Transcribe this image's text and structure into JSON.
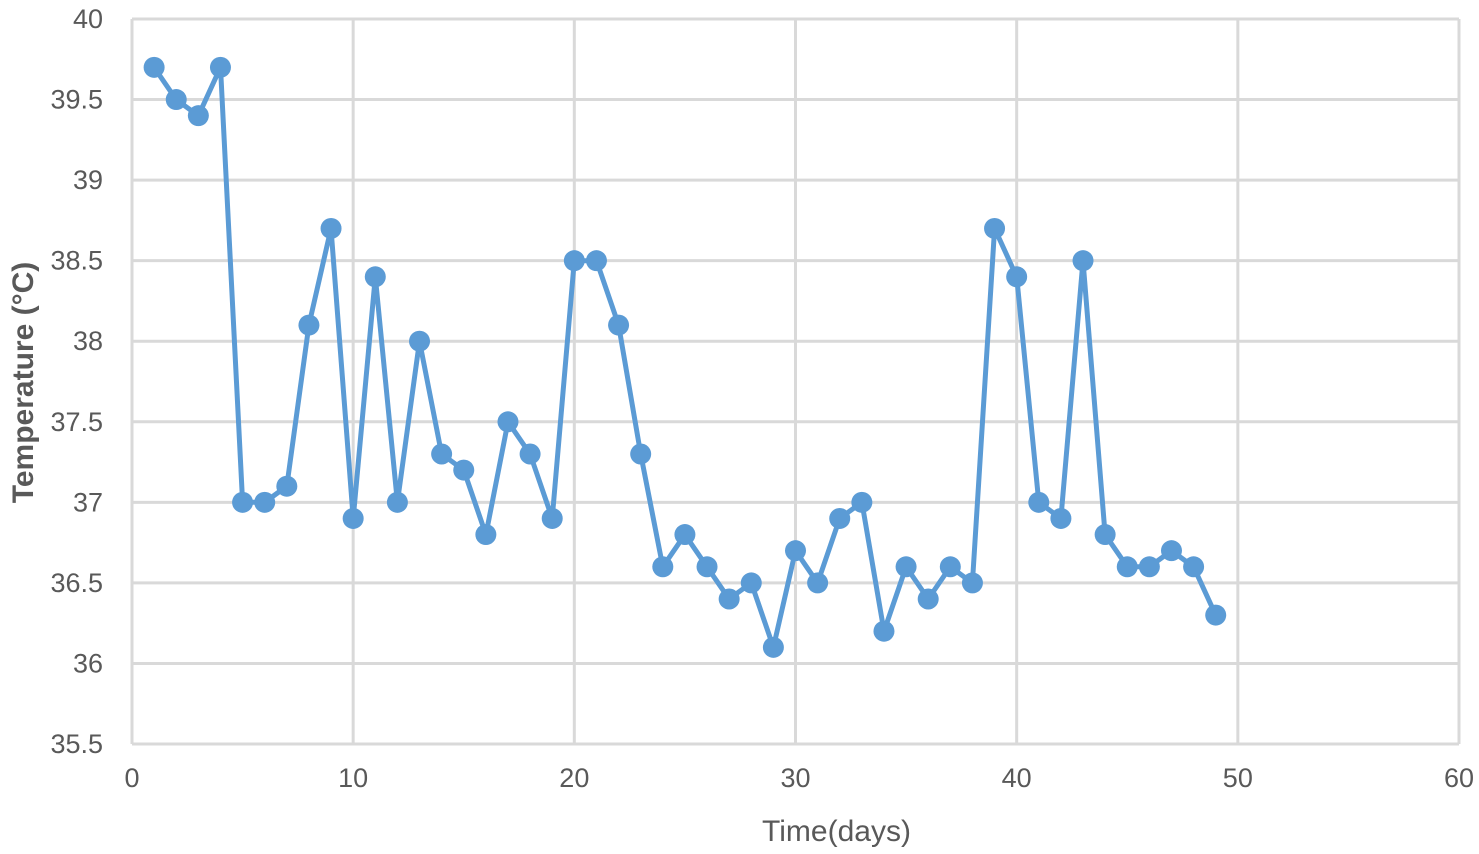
{
  "chart_data": {
    "type": "line",
    "title": "",
    "xlabel": "Time(days)",
    "ylabel": "Temperature (°C)",
    "xlim": [
      0,
      60
    ],
    "ylim": [
      35.5,
      40
    ],
    "x_ticks": [
      "0",
      "10",
      "20",
      "30",
      "40",
      "50",
      "60"
    ],
    "y_ticks": [
      "35.5",
      "36",
      "36.5",
      "37",
      "37.5",
      "38",
      "38.5",
      "39",
      "39.5",
      "40"
    ],
    "grid": true,
    "legend": "none",
    "color": "#5b9bd5",
    "series": [
      {
        "x": [
          1,
          2,
          3,
          4,
          5,
          6,
          7,
          8,
          9,
          10,
          11,
          12,
          13,
          14,
          15,
          16,
          17,
          18,
          19,
          20,
          21,
          22,
          23,
          24,
          25,
          26,
          27,
          28,
          29,
          30,
          31,
          32,
          33,
          34,
          35,
          36,
          37,
          38,
          39,
          40,
          41,
          42,
          43,
          44,
          45,
          46,
          47,
          48,
          49
        ],
        "values": [
          39.7,
          39.5,
          39.4,
          39.7,
          37.0,
          37.0,
          37.1,
          38.1,
          38.7,
          36.9,
          38.4,
          37.0,
          38.0,
          37.3,
          37.2,
          36.8,
          37.5,
          37.3,
          36.9,
          38.5,
          38.5,
          38.1,
          37.3,
          36.6,
          36.8,
          36.6,
          36.4,
          36.5,
          36.1,
          36.7,
          36.5,
          36.9,
          37.0,
          36.2,
          36.6,
          36.4,
          36.6,
          36.5,
          38.7,
          38.4,
          37.0,
          36.9,
          38.5,
          36.8,
          36.6,
          36.6,
          36.7,
          36.6,
          36.3
        ]
      }
    ]
  }
}
